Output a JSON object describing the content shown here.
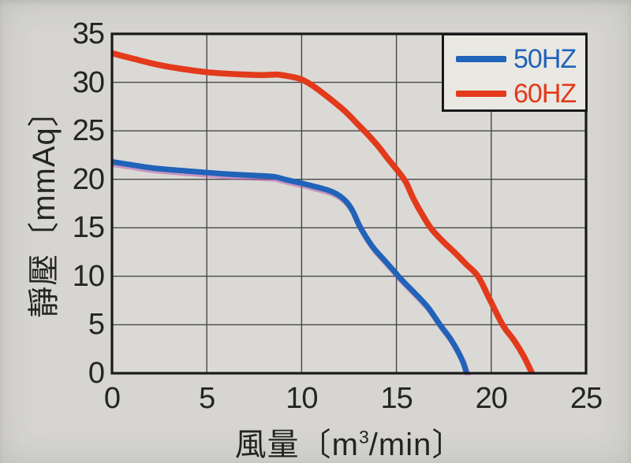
{
  "colors": {
    "page_bg": "#d6d5d1",
    "plot_bg": "#dad9d5",
    "grid": "#48484a",
    "border": "#1a1a1a",
    "tick_text": "#242424",
    "legend_bg": "#eae8e3",
    "blue_fringe": "#b44fb0"
  },
  "chart_data": {
    "type": "line",
    "title": "",
    "xlabel": "風量〔m³/min〕",
    "xlabel_parts": {
      "before": "風量〔m",
      "sup": "3",
      "after": "/min〕"
    },
    "ylabel": "靜壓〔mmAq〕",
    "xlim": [
      0,
      25
    ],
    "ylim": [
      0,
      35
    ],
    "xticks": [
      0,
      5,
      10,
      15,
      20,
      25
    ],
    "yticks": [
      0,
      5,
      10,
      15,
      20,
      25,
      30,
      35
    ],
    "grid": true,
    "legend_position": "top-right",
    "series": [
      {
        "name": "50HZ",
        "color": "#2063b8",
        "points": [
          [
            0,
            21.8
          ],
          [
            1,
            21.5
          ],
          [
            2,
            21.2
          ],
          [
            3,
            21.0
          ],
          [
            4,
            20.85
          ],
          [
            5,
            20.7
          ],
          [
            6,
            20.55
          ],
          [
            7,
            20.45
          ],
          [
            8,
            20.35
          ],
          [
            8.6,
            20.25
          ],
          [
            9.2,
            19.95
          ],
          [
            10,
            19.6
          ],
          [
            10.5,
            19.35
          ],
          [
            11,
            19.1
          ],
          [
            11.5,
            18.8
          ],
          [
            12,
            18.3
          ],
          [
            12.4,
            17.6
          ],
          [
            12.7,
            16.7
          ],
          [
            13.0,
            15.4
          ],
          [
            13.35,
            14.2
          ],
          [
            13.8,
            12.9
          ],
          [
            14.3,
            11.8
          ],
          [
            14.8,
            10.7
          ],
          [
            15.2,
            9.8
          ],
          [
            15.7,
            8.8
          ],
          [
            16.2,
            7.8
          ],
          [
            16.7,
            6.7
          ],
          [
            17.3,
            5.0
          ],
          [
            17.8,
            3.7
          ],
          [
            18.2,
            2.4
          ],
          [
            18.5,
            1.2
          ],
          [
            18.7,
            0
          ]
        ]
      },
      {
        "name": "60HZ",
        "color": "#e23a1b",
        "points": [
          [
            0,
            33.0
          ],
          [
            1,
            32.5
          ],
          [
            2,
            32.0
          ],
          [
            3,
            31.6
          ],
          [
            4,
            31.3
          ],
          [
            5,
            31.05
          ],
          [
            6,
            30.9
          ],
          [
            7,
            30.8
          ],
          [
            8,
            30.75
          ],
          [
            8.7,
            30.8
          ],
          [
            9.4,
            30.6
          ],
          [
            10,
            30.3
          ],
          [
            10.7,
            29.5
          ],
          [
            11.5,
            28.3
          ],
          [
            12.3,
            27.0
          ],
          [
            13.0,
            25.6
          ],
          [
            13.5,
            24.6
          ],
          [
            14.0,
            23.5
          ],
          [
            14.6,
            22.0
          ],
          [
            15.1,
            20.8
          ],
          [
            15.5,
            19.7
          ],
          [
            15.9,
            18.0
          ],
          [
            16.35,
            16.4
          ],
          [
            16.8,
            15.0
          ],
          [
            17.4,
            13.7
          ],
          [
            18.1,
            12.4
          ],
          [
            18.7,
            11.2
          ],
          [
            19.3,
            10.0
          ],
          [
            19.9,
            7.7
          ],
          [
            20.6,
            5.0
          ],
          [
            21.2,
            3.4
          ],
          [
            21.7,
            1.8
          ],
          [
            22.15,
            0
          ]
        ]
      }
    ]
  }
}
